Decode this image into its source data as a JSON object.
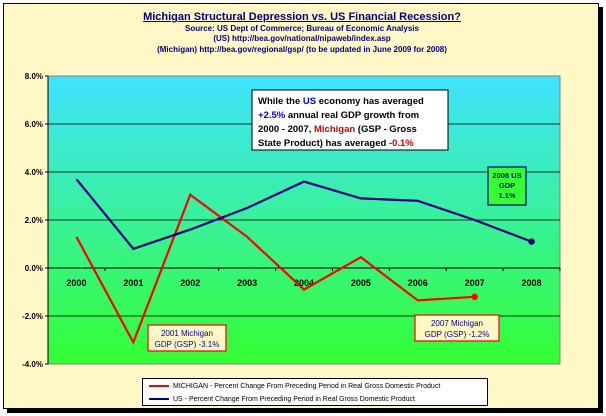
{
  "titles": {
    "title": "Michigan Structural Depression vs. US Financial Recession?",
    "source": "Source: US Dept of Commerce; Bureau of Economic Analysis",
    "us_source": "(US) http://bea.gov/national/nipaweb/index.asp",
    "mi_source": "(Michigan) http://bea.gov/regional/gsp/ (to be updated in June 2009 for 2008)"
  },
  "chart_data": {
    "type": "line",
    "x": [
      "2000",
      "2001",
      "2002",
      "2003",
      "2004",
      "2005",
      "2006",
      "2007",
      "2008"
    ],
    "ylim": [
      -4,
      8
    ],
    "yticks": [
      "-4.0%",
      "-2.0%",
      "0.0%",
      "2.0%",
      "4.0%",
      "6.0%",
      "8.0%"
    ],
    "grid": true,
    "legend_position": "bottom",
    "series": [
      {
        "name": "MICHIGAN - Percent Change From Preceding Period in Real Gross Domestic Product",
        "color": "#ff0000",
        "values": [
          1.3,
          -3.1,
          3.05,
          1.3,
          -0.9,
          0.45,
          -1.35,
          -1.2,
          null
        ]
      },
      {
        "name": "US - Percent Change From Preceding Period in Real Gross Domestic Product",
        "color": "#000080",
        "values": [
          3.7,
          0.8,
          1.6,
          2.5,
          3.6,
          2.9,
          2.8,
          2.0,
          1.1
        ]
      }
    ],
    "annotations": {
      "main": {
        "lines": [
          [
            {
              "t": "While the ",
              "c": "#000000"
            },
            {
              "t": "US",
              "c": "#0000cc"
            },
            {
              "t": " economy has averaged",
              "c": "#000000"
            }
          ],
          [
            {
              "t": "+2.5%",
              "c": "#0000cc"
            },
            {
              "t": " annual real GDP growth from",
              "c": "#000000"
            }
          ],
          [
            {
              "t": "2000 - 2007, ",
              "c": "#000000"
            },
            {
              "t": "Michigan",
              "c": "#cc0000"
            },
            {
              "t": " (GSP - Gross",
              "c": "#000000"
            }
          ],
          [
            {
              "t": "State Product) has averaged ",
              "c": "#000000"
            },
            {
              "t": "-0.1%",
              "c": "#cc0000"
            }
          ]
        ]
      },
      "us2008": {
        "line1": "2008 US",
        "line2": "GDP",
        "line3": "1.1%"
      },
      "mi2001": {
        "line1": "2001 Michigan",
        "line2": "GDP (GSP) -3.1%"
      },
      "mi2007": {
        "line1": "2007 Michigan",
        "line2": "GDP (GSP) -1.2%"
      }
    }
  },
  "colors": {
    "background": "#fff8c6",
    "plot_top": "#3fe3ff",
    "plot_bottom": "#33ff33",
    "michigan": "#ff0000",
    "us": "#000080"
  }
}
